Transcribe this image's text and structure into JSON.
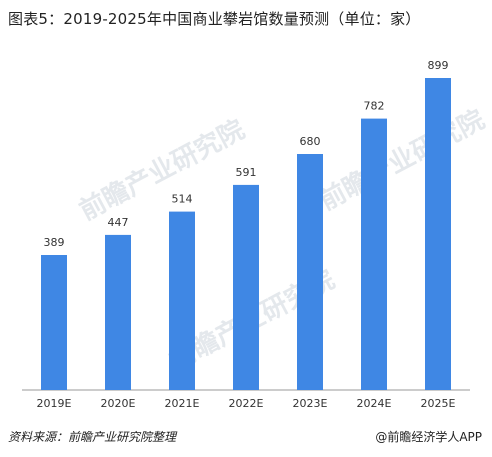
{
  "title": "图表5：2019-2025年中国商业攀岩馆数量预测（单位：家）",
  "footer": {
    "source": "资料来源：前瞻产业研究院整理",
    "brand": "@前瞻经济学人APP"
  },
  "watermark": "前瞻产业研究院",
  "colors": {
    "bar": "#3f87e4",
    "axis": "#9a9a9a",
    "text": "#333333"
  },
  "chart_data": {
    "type": "bar",
    "title": "图表5：2019-2025年中国商业攀岩馆数量预测（单位：家）",
    "categories": [
      "2019E",
      "2020E",
      "2021E",
      "2022E",
      "2023E",
      "2024E",
      "2025E"
    ],
    "values": [
      389,
      447,
      514,
      591,
      680,
      782,
      899
    ],
    "xlabel": "",
    "ylabel": "",
    "ylim": [
      0,
      899
    ],
    "grid": false,
    "data_labels": true
  }
}
